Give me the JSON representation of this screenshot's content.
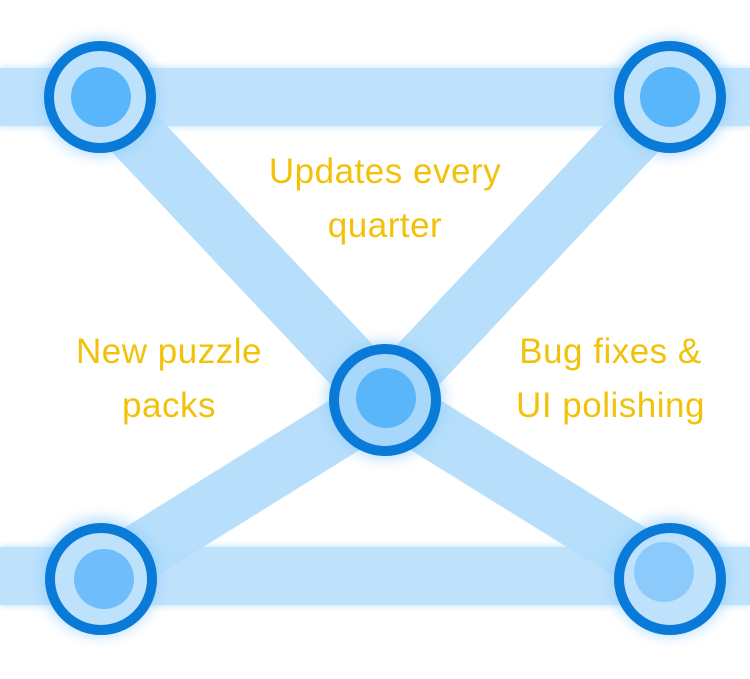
{
  "colors": {
    "background": "#ffffff",
    "track": "#bfe2fc",
    "track_edge": "#a7d7fa",
    "node_ring": "#0a7ad8",
    "node_fill": "#5ab6fb",
    "label_text": "#f2c10a"
  },
  "labels": {
    "updates": {
      "line1": "Updates every",
      "line2": "quarter"
    },
    "puzzle": {
      "line1": "New puzzle",
      "line2": "packs"
    },
    "bugs": {
      "line1": "Bug fixes &",
      "line2": "UI polishing"
    }
  }
}
